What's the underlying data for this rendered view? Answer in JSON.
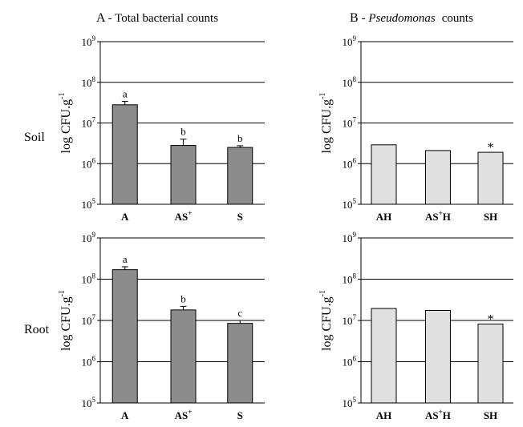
{
  "figure": {
    "panel_a_letter": "A",
    "panel_a_title": "- Total bacterial counts",
    "panel_b_letter": "B",
    "panel_b_title_italic": "Pseudomonas",
    "panel_b_title_rest": "counts",
    "row_soil": "Soil",
    "row_root": "Root",
    "ylabel": "log CFU.g-1"
  },
  "chart_data": [
    {
      "type": "bar",
      "title": "A - Total bacterial counts",
      "row": "Soil",
      "ylabel": "log CFU.g-1",
      "yscale": "log",
      "ylim": [
        100000,
        1000000000
      ],
      "yticks": [
        "10^5",
        "10^6",
        "10^7",
        "10^8",
        "10^9"
      ],
      "grid": true,
      "categories": [
        "A",
        "AS+",
        "S"
      ],
      "values": [
        28000000,
        2800000,
        2500000
      ],
      "errors_upper": [
        34000000,
        4000000,
        2750000
      ],
      "annotations": [
        "a",
        "b",
        "b"
      ],
      "bar_color": "#8c8c8c"
    },
    {
      "type": "bar",
      "title": "B - Pseudomonas counts",
      "row": "Soil",
      "ylabel": "log CFU.g-1",
      "yscale": "log",
      "ylim": [
        100000,
        1000000000
      ],
      "yticks": [
        "10^5",
        "10^6",
        "10^7",
        "10^8",
        "10^9"
      ],
      "grid": true,
      "categories": [
        "AH",
        "AS+H",
        "SH"
      ],
      "values": [
        2900000,
        2100000,
        1900000
      ],
      "errors_upper": [
        null,
        null,
        null
      ],
      "annotations": [
        "",
        "",
        "*"
      ],
      "bar_color": "#e0e0e0"
    },
    {
      "type": "bar",
      "title": "A - Total bacterial counts",
      "row": "Root",
      "ylabel": "log CFU.g-1",
      "yscale": "log",
      "ylim": [
        100000,
        1000000000
      ],
      "yticks": [
        "10^5",
        "10^6",
        "10^7",
        "10^8",
        "10^9"
      ],
      "grid": true,
      "categories": [
        "A",
        "AS+",
        "S"
      ],
      "values": [
        170000000,
        18000000,
        8500000
      ],
      "errors_upper": [
        200000000,
        22000000,
        10000000
      ],
      "annotations": [
        "a",
        "b",
        "c"
      ],
      "bar_color": "#8c8c8c"
    },
    {
      "type": "bar",
      "title": "B - Pseudomonas counts",
      "row": "Root",
      "ylabel": "log CFU.g-1",
      "yscale": "log",
      "ylim": [
        100000,
        1000000000
      ],
      "yticks": [
        "10^5",
        "10^6",
        "10^7",
        "10^8",
        "10^9"
      ],
      "grid": true,
      "categories": [
        "AH",
        "AS+H",
        "SH"
      ],
      "values": [
        19500000,
        17500000,
        8200000
      ],
      "errors_upper": [
        null,
        null,
        null
      ],
      "annotations": [
        "",
        "",
        "*"
      ],
      "bar_color": "#e0e0e0"
    }
  ]
}
